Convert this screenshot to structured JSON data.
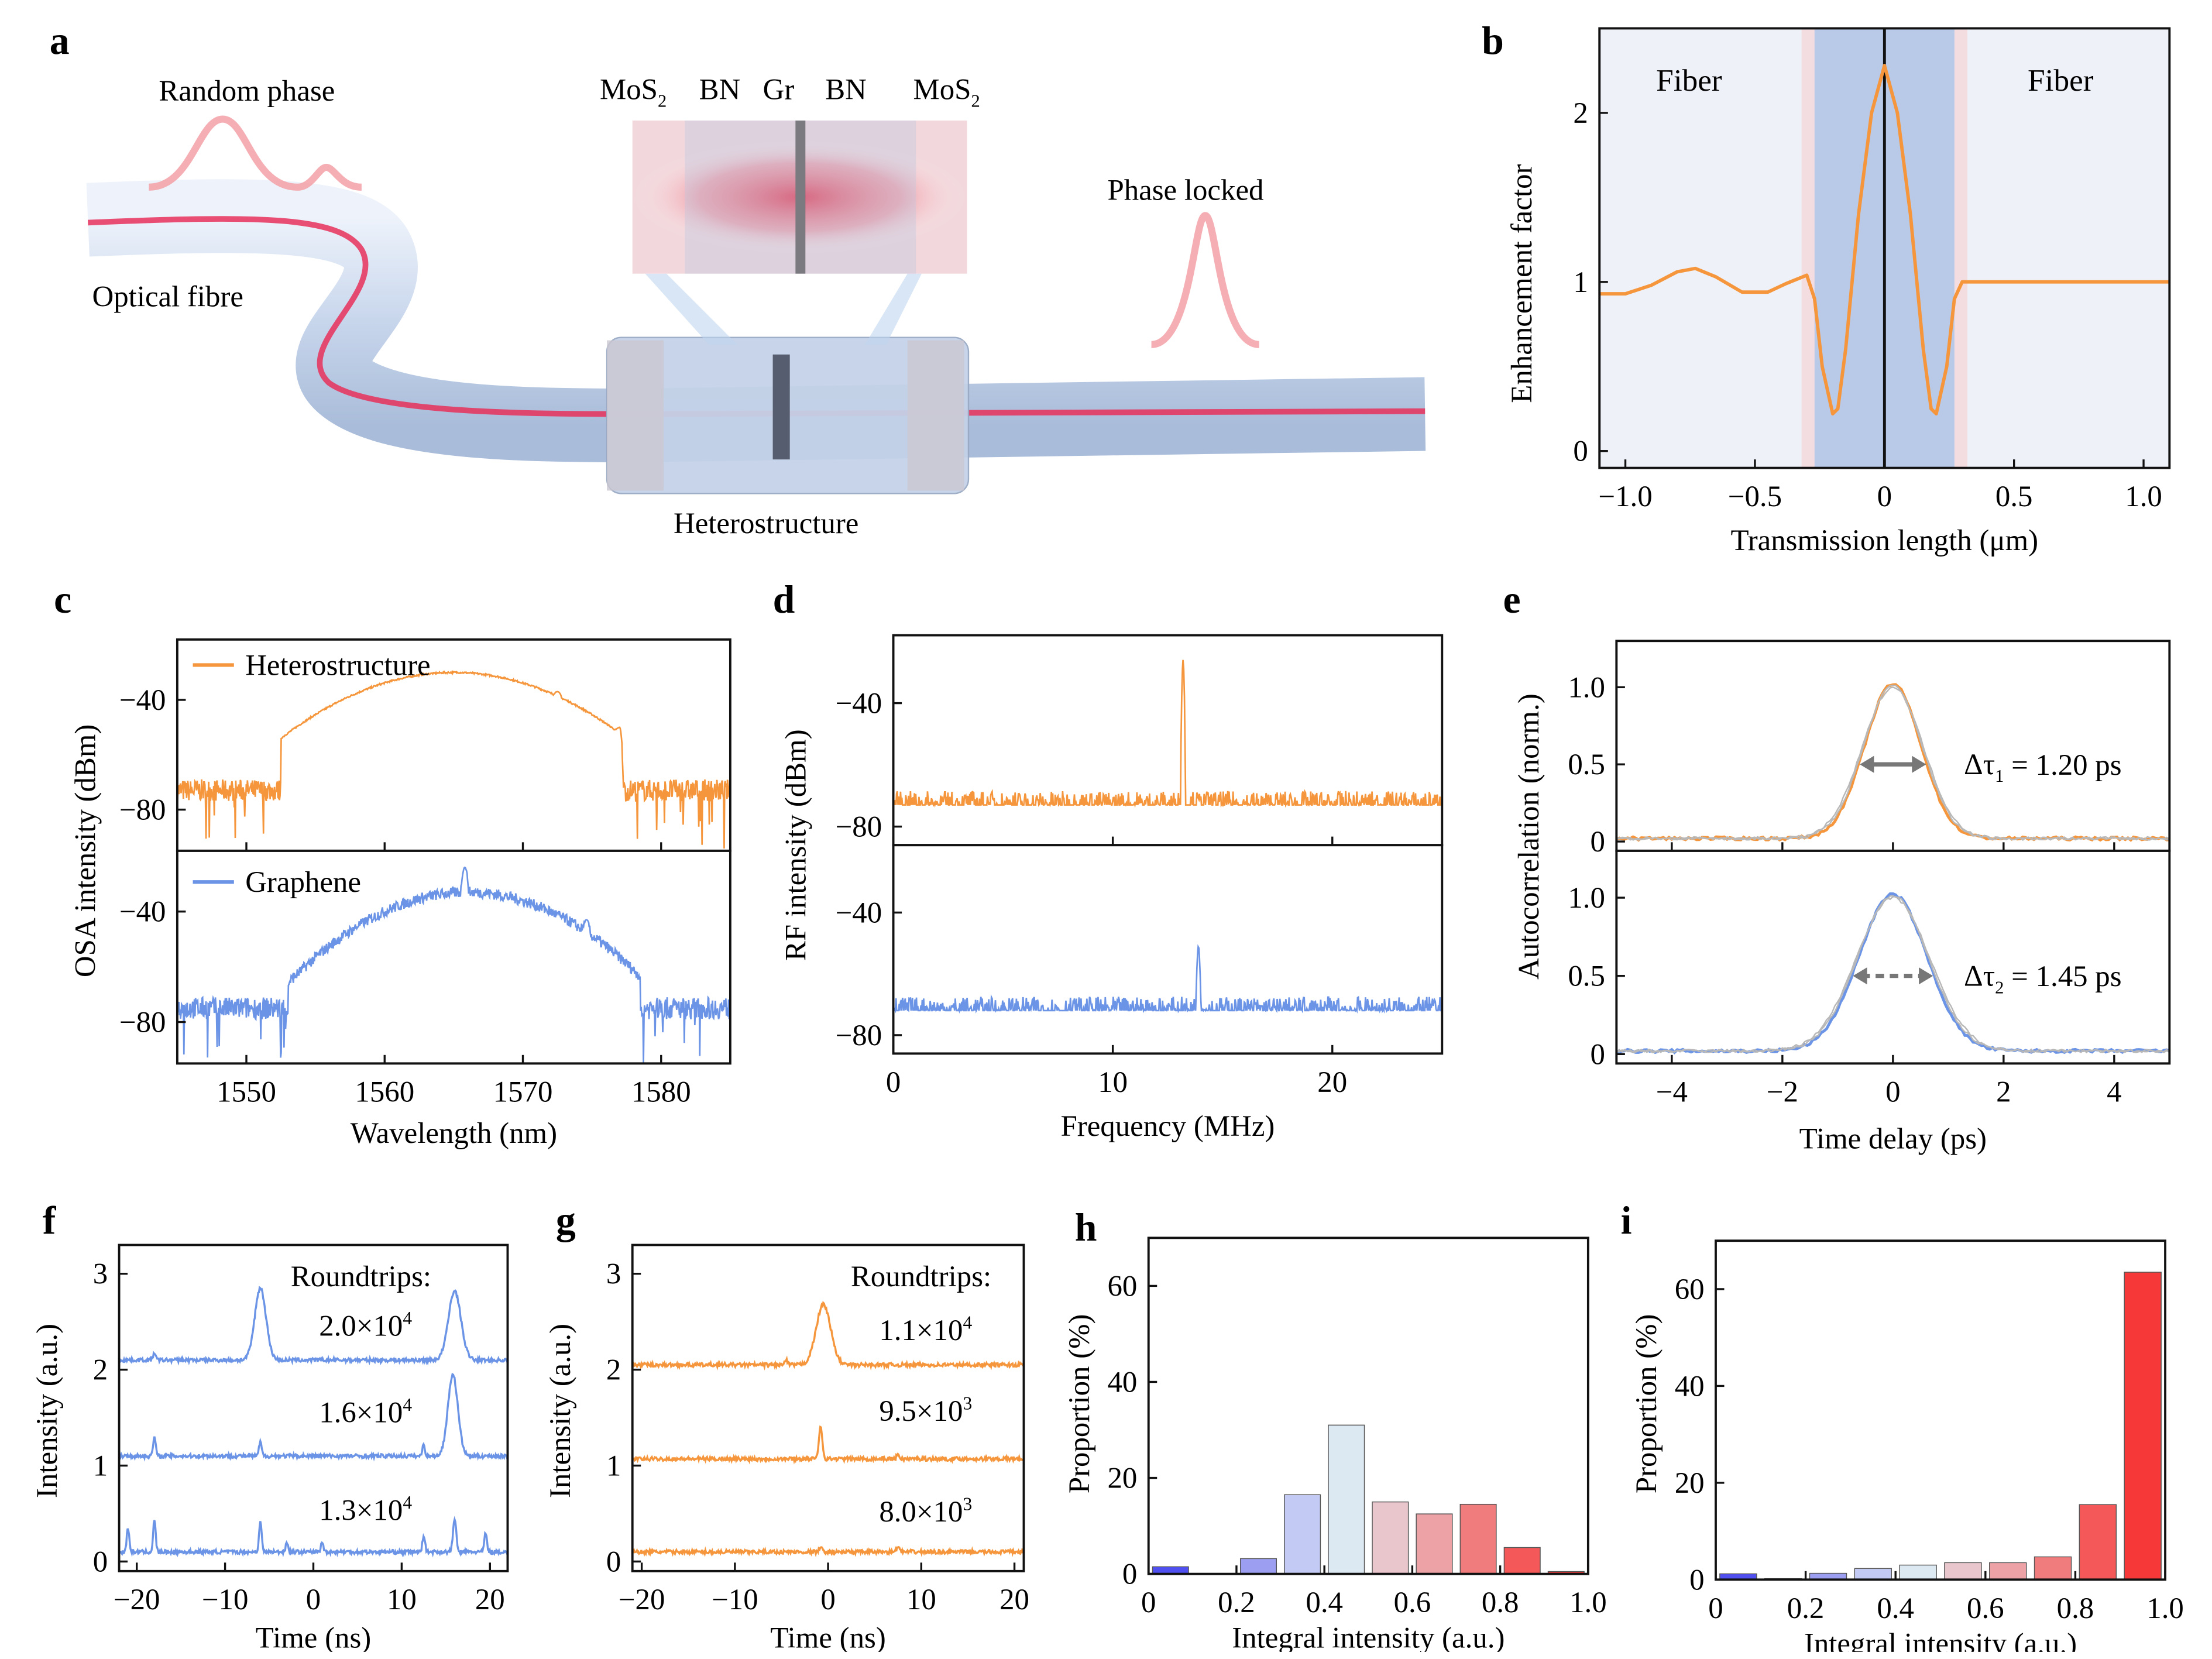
{
  "panel_letters": [
    "a",
    "b",
    "c",
    "d",
    "e",
    "f",
    "g",
    "h",
    "i"
  ],
  "schematic": {
    "labels": {
      "random_phase": "Random phase",
      "optical_fibre": "Optical fibre",
      "phase_locked": "Phase locked",
      "heterostructure": "Heterostructure"
    },
    "layers": [
      "MoS",
      "BN",
      "Gr",
      "BN",
      "MoS"
    ],
    "layer_subscripts": [
      "2",
      "",
      "",
      "",
      "2"
    ],
    "colors": {
      "core": "#e8305a",
      "fibre": "#c9d8ee"
    }
  },
  "chart_data": [
    {
      "panel": "b",
      "type": "line",
      "xlabel": "Transmission length (μm)",
      "ylabel": "Enhancement factor",
      "xlim": [
        -1.1,
        1.1
      ],
      "ylim": [
        -0.1,
        2.5
      ],
      "xticks": [
        -1.0,
        -0.5,
        0,
        0.5,
        1.0
      ],
      "xticklabels": [
        "−1.0",
        "−0.5",
        "0",
        "0.5",
        "1.0"
      ],
      "yticks": [
        0,
        1,
        2
      ],
      "region_labels": [
        "Fiber",
        "Fiber"
      ],
      "heterostructure_region": [
        -0.27,
        0.27
      ],
      "interface_region": [
        -0.32,
        0.32
      ],
      "color": "#f5963c",
      "x": [
        -1.1,
        -1.0,
        -0.9,
        -0.8,
        -0.73,
        -0.65,
        -0.55,
        -0.45,
        -0.38,
        -0.3,
        -0.27,
        -0.24,
        -0.2,
        -0.18,
        -0.15,
        -0.1,
        -0.05,
        0,
        0.05,
        0.1,
        0.15,
        0.18,
        0.2,
        0.24,
        0.27,
        0.3,
        0.5,
        0.8,
        1.1
      ],
      "y": [
        0.93,
        0.93,
        0.98,
        1.06,
        1.08,
        1.03,
        0.94,
        0.94,
        0.99,
        1.04,
        0.9,
        0.5,
        0.22,
        0.25,
        0.6,
        1.4,
        2.0,
        2.28,
        2.0,
        1.4,
        0.6,
        0.25,
        0.22,
        0.5,
        0.9,
        1.0,
        1.0,
        1.0,
        1.0
      ]
    },
    {
      "panel": "c",
      "type": "line",
      "xlabel": "Wavelength (nm)",
      "ylabel": "OSA intensity (dBm)",
      "xlim": [
        1545,
        1585
      ],
      "xticks": [
        1550,
        1560,
        1570,
        1580
      ],
      "subplots": [
        {
          "name": "Heterostructure",
          "color": "#f5963c",
          "ylim": [
            -95,
            -18
          ],
          "yticks": [
            -40,
            -80
          ],
          "noise_floor": -73,
          "band": [
            1552.5,
            1577
          ],
          "envelope_peak": {
            "x": 1565,
            "y": -30
          },
          "band_edge_level": -54,
          "sidebands": [
            {
              "x": 1556,
              "y": -46
            },
            {
              "x": 1572.5,
              "y": -37
            },
            {
              "x": 1577,
              "y": -50
            }
          ]
        },
        {
          "name": "Graphene",
          "color": "#6b94e6",
          "ylim": [
            -95,
            -18
          ],
          "yticks": [
            -40,
            -80
          ],
          "noise_floor": -75,
          "band": [
            1553,
            1578.5
          ],
          "envelope_peak": {
            "x": 1566,
            "y": -33
          },
          "band_edge_level": -66,
          "sidebands": [
            {
              "x": 1558.3,
              "y": -45
            },
            {
              "x": 1561.5,
              "y": -40
            },
            {
              "x": 1565.8,
              "y": -24
            },
            {
              "x": 1573,
              "y": -51
            },
            {
              "x": 1574.6,
              "y": -43
            }
          ]
        }
      ]
    },
    {
      "panel": "d",
      "type": "line",
      "xlabel": "Frequency (MHz)",
      "ylabel": "RF intensity (dBm)",
      "xlim": [
        0,
        25
      ],
      "xticks": [
        0,
        10,
        20
      ],
      "subplots": [
        {
          "color": "#f5963c",
          "ylim": [
            -86,
            -18
          ],
          "yticks": [
            -40,
            -80
          ],
          "noise_floor": -73,
          "peak": {
            "x": 13.2,
            "y": -26
          }
        },
        {
          "color": "#6b94e6",
          "ylim": [
            -86,
            -18
          ],
          "yticks": [
            -40,
            -80
          ],
          "noise_floor": -72,
          "peak": {
            "x": 13.9,
            "y": -51
          }
        }
      ]
    },
    {
      "panel": "e",
      "type": "line",
      "xlabel": "Time delay (ps)",
      "ylabel": "Autocorrelation (norm.)",
      "xlim": [
        -5,
        5
      ],
      "xticks": [
        -4,
        -2,
        0,
        2,
        4
      ],
      "subplots": [
        {
          "color": "#f5963c",
          "ylim": [
            -0.06,
            1.3
          ],
          "yticks": [
            0,
            0.5,
            1.0
          ],
          "yticklabels": [
            "0",
            "0.5",
            "1.0"
          ],
          "annotation": "Δτ",
          "subscript": "1",
          "value_text": " = 1.20 ps",
          "fwhm_ps": 1.2
        },
        {
          "color": "#6b94e6",
          "ylim": [
            -0.06,
            1.3
          ],
          "yticks": [
            0,
            0.5,
            1.0
          ],
          "yticklabels": [
            "0",
            "0.5",
            "1.0"
          ],
          "annotation": "Δτ",
          "subscript": "2",
          "value_text": " = 1.45 ps",
          "fwhm_ps": 1.45
        }
      ]
    },
    {
      "panel": "f",
      "type": "line",
      "xlabel": "Time (ns)",
      "ylabel": "Intensity (a.u.)",
      "xlim": [
        -22,
        22
      ],
      "ylim": [
        -0.1,
        3.3
      ],
      "xticks": [
        -20,
        -10,
        0,
        10,
        20
      ],
      "yticks": [
        0,
        1,
        2,
        3
      ],
      "color": "#6b94e6",
      "legend_title": "Roundtrips:",
      "traces": [
        {
          "label": "2.0×10",
          "exp": "4",
          "offset": 2.1,
          "peaks": [
            {
              "x": -6,
              "h": 0.75,
              "w": 0.9
            },
            {
              "x": 16,
              "h": 0.72,
              "w": 1.0
            },
            {
              "x": -18,
              "h": 0.08,
              "w": 0.2
            }
          ]
        },
        {
          "label": "1.6×10",
          "exp": "4",
          "offset": 1.1,
          "peaks": [
            {
              "x": 15.8,
              "h": 0.85,
              "w": 0.8
            },
            {
              "x": -18,
              "h": 0.2,
              "w": 0.2
            },
            {
              "x": -6,
              "h": 0.15,
              "w": 0.2
            },
            {
              "x": 12.5,
              "h": 0.12,
              "w": 0.2
            }
          ]
        },
        {
          "label": "1.3×10",
          "exp": "4",
          "offset": 0.1,
          "peaks": [
            {
              "x": -21,
              "h": 0.25,
              "w": 0.2
            },
            {
              "x": -18,
              "h": 0.33,
              "w": 0.2
            },
            {
              "x": -6,
              "h": 0.33,
              "w": 0.2
            },
            {
              "x": -3,
              "h": 0.1,
              "w": 0.2
            },
            {
              "x": 1,
              "h": 0.1,
              "w": 0.2
            },
            {
              "x": 12.5,
              "h": 0.18,
              "w": 0.2
            },
            {
              "x": 16,
              "h": 0.35,
              "w": 0.25
            },
            {
              "x": 19.5,
              "h": 0.2,
              "w": 0.2
            }
          ]
        }
      ]
    },
    {
      "panel": "g",
      "type": "line",
      "xlabel": "Time (ns)",
      "ylabel": "Intensity (a.u.)",
      "xlim": [
        -21,
        21
      ],
      "ylim": [
        -0.1,
        3.3
      ],
      "xticks": [
        -20,
        -10,
        0,
        10,
        20
      ],
      "yticks": [
        0,
        1,
        2,
        3
      ],
      "color": "#f5963c",
      "legend_title": "Roundtrips:",
      "traces": [
        {
          "label": "1.1×10",
          "exp": "4",
          "offset": 2.05,
          "peaks": [
            {
              "x": -0.5,
              "h": 0.63,
              "w": 1.1
            },
            {
              "x": -4.5,
              "h": 0.05,
              "w": 0.2
            }
          ]
        },
        {
          "label": "9.5×10",
          "exp": "3",
          "offset": 1.07,
          "peaks": [
            {
              "x": -0.8,
              "h": 0.35,
              "w": 0.25
            },
            {
              "x": 7.5,
              "h": 0.05,
              "w": 0.2
            }
          ]
        },
        {
          "label": "8.0×10",
          "exp": "3",
          "offset": 0.1,
          "peaks": [
            {
              "x": -0.8,
              "h": 0.05,
              "w": 0.2
            },
            {
              "x": 7.5,
              "h": 0.06,
              "w": 0.2
            }
          ]
        }
      ]
    },
    {
      "panel": "h",
      "type": "bar",
      "xlabel": "Integral intensity (a.u.)",
      "ylabel": "Proportion (%)",
      "xlim": [
        0,
        1.0
      ],
      "ylim": [
        0,
        70
      ],
      "xticks": [
        0,
        0.2,
        0.4,
        0.6,
        0.8,
        1.0
      ],
      "xticklabels": [
        "0",
        "0.2",
        "0.4",
        "0.6",
        "0.8",
        "1.0"
      ],
      "yticks": [
        0,
        20,
        40,
        60
      ],
      "bin_centers": [
        0.05,
        0.15,
        0.25,
        0.35,
        0.45,
        0.55,
        0.65,
        0.75,
        0.85,
        0.95
      ],
      "values": [
        1.5,
        0,
        3.2,
        16.5,
        31,
        15,
        12.5,
        14.5,
        5.5,
        0.5
      ],
      "colors": [
        "#5050f0",
        "#7a7af0",
        "#9c9ef2",
        "#c3caf4",
        "#dce8f2",
        "#e8c6cc",
        "#eda2a6",
        "#f17c7e",
        "#f55858",
        "#f63838"
      ]
    },
    {
      "panel": "i",
      "type": "bar",
      "xlabel": "Integral intensity (a.u.)",
      "ylabel": "Proportion (%)",
      "xlim": [
        0,
        1.0
      ],
      "ylim": [
        0,
        70
      ],
      "xticks": [
        0,
        0.2,
        0.4,
        0.6,
        0.8,
        1.0
      ],
      "xticklabels": [
        "0",
        "0.2",
        "0.4",
        "0.6",
        "0.8",
        "1.0"
      ],
      "yticks": [
        0,
        20,
        40,
        60
      ],
      "bin_centers": [
        0.05,
        0.15,
        0.25,
        0.35,
        0.45,
        0.55,
        0.65,
        0.75,
        0.85,
        0.95
      ],
      "values": [
        1.2,
        0.2,
        1.3,
        2.3,
        3,
        3.5,
        3.5,
        4.7,
        15.5,
        63.5
      ],
      "colors": [
        "#5050f0",
        "#7a7af0",
        "#9c9ef2",
        "#c3caf4",
        "#dce8f2",
        "#e8c6cc",
        "#eda2a6",
        "#f17c7e",
        "#f55858",
        "#f63838"
      ]
    }
  ]
}
